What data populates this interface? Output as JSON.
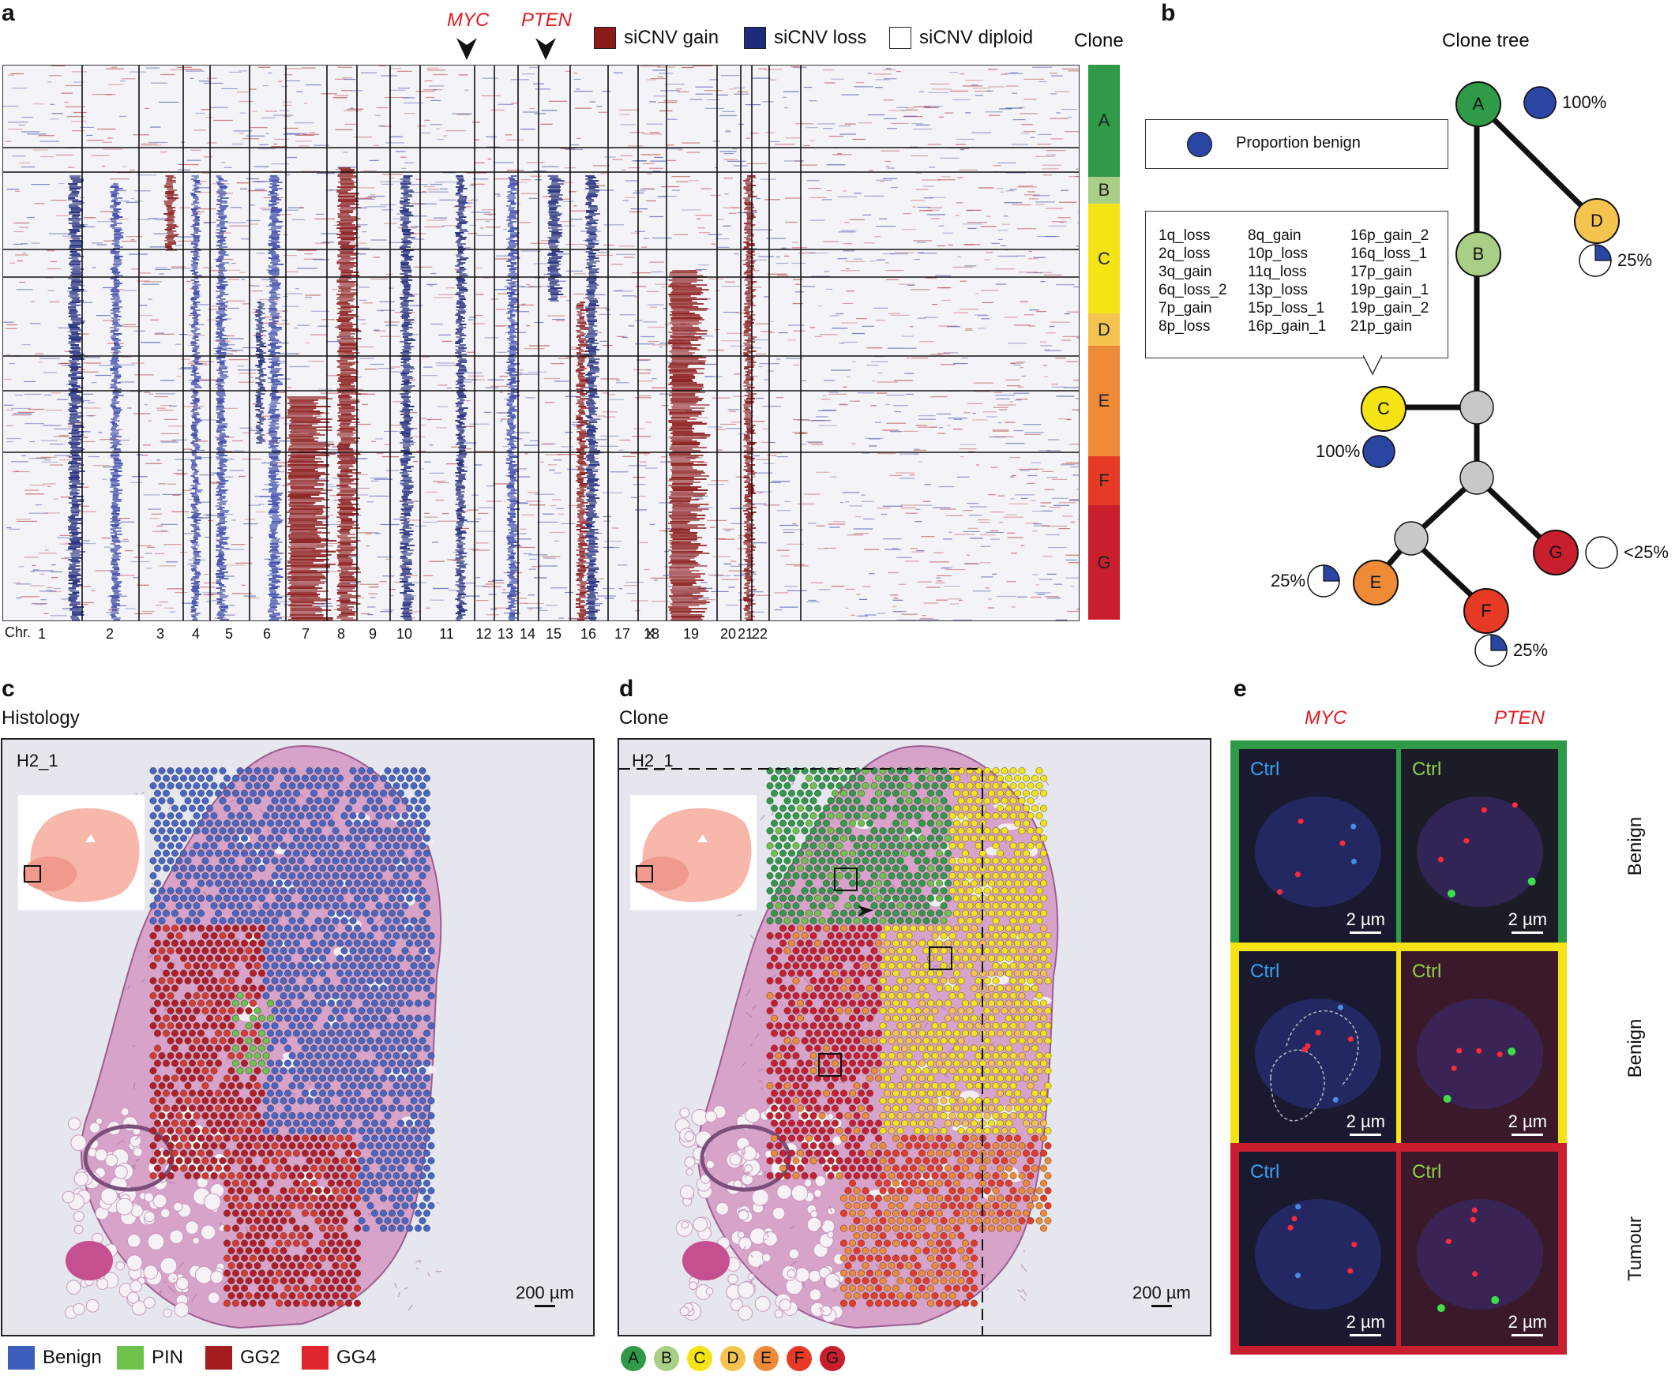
{
  "panels": {
    "a": "a",
    "b": "b",
    "c": "c",
    "d": "d",
    "e": "e"
  },
  "heatmap": {
    "genes": {
      "myc": "MYC",
      "pten": "PTEN"
    },
    "legend": [
      {
        "label": "siCNV gain",
        "color": "#8b1a1a"
      },
      {
        "label": "siCNV loss",
        "color": "#1f2a7a"
      },
      {
        "label": "siCNV diploid",
        "color": "#ffffff"
      }
    ],
    "clone_header": "Clone",
    "chr_prefix": "Chr.",
    "chromosomes": [
      "1",
      "2",
      "3",
      "4",
      "5",
      "6",
      "7",
      "8",
      "9",
      "10",
      "11",
      "12",
      "13",
      "14",
      "15",
      "16",
      "17",
      "18",
      "19",
      "20",
      "21",
      "22",
      "X"
    ],
    "clones": [
      {
        "id": "A",
        "color": "#2f9a48"
      },
      {
        "id": "B",
        "color": "#a9cf86"
      },
      {
        "id": "C",
        "color": "#f5e415"
      },
      {
        "id": "D",
        "color": "#f5c44e"
      },
      {
        "id": "E",
        "color": "#ef8a37"
      },
      {
        "id": "F",
        "color": "#e63a24"
      },
      {
        "id": "G",
        "color": "#c81e2e"
      }
    ]
  },
  "tree": {
    "title": "Clone tree",
    "legend_label": "Proportion benign",
    "mutations": [
      "1q_loss",
      "8q_gain",
      "16p_gain_2",
      "2q_loss",
      "10p_loss",
      "16q_loss_1",
      "3q_gain",
      "11q_loss",
      "17p_gain",
      "6q_loss_2",
      "13p_loss",
      "19p_gain_1",
      "7p_gain",
      "15p_loss_1",
      "19p_gain_2",
      "8p_loss",
      "16p_gain_1",
      "21p_gain"
    ],
    "nodes": [
      {
        "id": "A",
        "pct": "100%",
        "benign_fraction": 1.0
      },
      {
        "id": "B"
      },
      {
        "id": "C",
        "pct": "100%",
        "benign_fraction": 1.0
      },
      {
        "id": "D",
        "pct": "25%",
        "benign_fraction": 0.25
      },
      {
        "id": "E",
        "pct": "25%",
        "benign_fraction": 0.25
      },
      {
        "id": "F",
        "pct": "25%",
        "benign_fraction": 0.25
      },
      {
        "id": "G",
        "pct": "<25%",
        "benign_fraction": 0.0
      }
    ]
  },
  "histology": {
    "title": "Histology",
    "sample": "H2_1",
    "scale": "200 µm",
    "legend": [
      {
        "label": "Benign",
        "color": "#3d5dbb"
      },
      {
        "label": "PIN",
        "color": "#6cc24a"
      },
      {
        "label": "GG2",
        "color": "#a31d1d"
      },
      {
        "label": "GG4",
        "color": "#e0262a"
      }
    ]
  },
  "clone_map": {
    "title": "Clone",
    "sample": "H2_1",
    "scale": "200 µm"
  },
  "fish": {
    "col1": "MYC",
    "col2": "PTEN",
    "ctrl": "Ctrl",
    "scale": "2 µm",
    "rows": [
      {
        "label": "Benign",
        "border": "#2f9a48"
      },
      {
        "label": "Benign",
        "border": "#f5e415"
      },
      {
        "label": "Tumour",
        "border": "#c81e2e"
      }
    ]
  }
}
